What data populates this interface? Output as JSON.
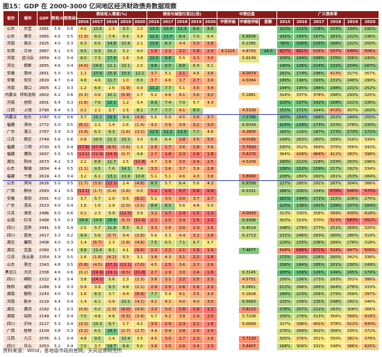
{
  "title": "图15：GDP 在 2000-3000 亿间地区经济财政债务数据观察",
  "source": "资料来源：Wind，各地级市政府官网，天风证券研究所",
  "table": {
    "header_top": [
      "省份",
      "城市",
      "GDP",
      "税收/GDP",
      "财政自给率",
      "税收收入增速(%)",
      "税收与城投付息比(倍)",
      "中债估值",
      "广义债务率"
    ],
    "header_sub": [
      "2016",
      "2017",
      "2018",
      "2019",
      "2020",
      "2016",
      "2017",
      "2018",
      "2019",
      "2020",
      "中债评级",
      "中诚信评级",
      "差额",
      "2015",
      "2016",
      "2017",
      "2018",
      "2019",
      "2020"
    ],
    "rows": [
      [
        "山东",
        "东营",
        "2981",
        "5.6",
        "0.8",
        "4.0",
        "10.6",
        "2.3",
        "9.3",
        "2.0",
        "13.3",
        "13.4",
        "11.3",
        "9.4",
        "8.8",
        "",
        "",
        "",
        "112%",
        "111%",
        "128%",
        "153%",
        "184%",
        "192%"
      ],
      [
        "山东",
        "泰安",
        "2965",
        "4.5",
        "0.5",
        "(1.9)",
        "8.0",
        "7.4",
        "6.6",
        "3.4",
        "12.5",
        "11.0",
        "8.4",
        "7.0",
        "6.4",
        "",
        "6.8506",
        "",
        "141%",
        "150%",
        "167%",
        "181%",
        "212%",
        "236%"
      ],
      [
        "河南",
        "商丘",
        "2925",
        "4.0",
        "0.3",
        "6.3",
        "6.6",
        "14.8",
        "10.6",
        "2.1",
        "13.6",
        "8.3",
        "4.4",
        "3.0",
        "2.6",
        "",
        "6.2385",
        "",
        "90%",
        "100%",
        "115%",
        "168%",
        "222%",
        "250%"
      ],
      [
        "甘肃",
        "兰州",
        "2887",
        "6.1",
        "0.5",
        "9.5",
        "9.9",
        "10.2",
        "5.2",
        "4.0",
        "1.9",
        "2.2",
        "2.1",
        "1.8",
        "2.0",
        "4.1114",
        "4.8750",
        "24.0",
        "627%",
        "661%",
        "526%",
        "537%",
        "549%",
        "506%"
      ],
      [
        "河南",
        "驻马店",
        "2859",
        "4.0",
        "0.4",
        "8.0",
        "7.3",
        "17.4",
        "1.6",
        "3.8",
        "12.0",
        "9.8",
        "5.5",
        "3.3",
        "3.0",
        "",
        "5.9149",
        "",
        "156%",
        "144%",
        "149%",
        "176%",
        "206%",
        "240%"
      ],
      [
        "河北",
        "邯郸",
        "2855",
        "4.6",
        "0.4",
        "(4.0)",
        "14.5",
        "12.1",
        "10.1",
        "2.0",
        "9.6",
        "9.0",
        "8.8",
        "6.9",
        "6.1",
        "",
        "",
        "",
        "140%",
        "126%",
        "114%",
        "131%",
        "154%",
        "167%"
      ],
      [
        "安徽",
        "滁州",
        "2851",
        "5.0",
        "0.5",
        "1.2",
        "17.9",
        "15.9",
        "15.5",
        "12.1",
        "3.7",
        "5.1",
        "2.1",
        "4.5",
        "3.6",
        "",
        "4.0074",
        "",
        "181%",
        "174%",
        "196%",
        "423%",
        "317%",
        "357%"
      ],
      [
        "安徽",
        "安庆",
        "2829",
        "4.7",
        "0.4",
        "4.8",
        "4.6",
        "11.7",
        "1.0",
        "8.0",
        "3.7",
        "4.6",
        "3.7",
        "2.7",
        "3.6",
        "",
        "4.5084",
        "",
        "189%",
        "196%",
        "193%",
        "231%",
        "246%",
        "290%"
      ],
      [
        "河南",
        "周口",
        "2805",
        "4.2",
        "0.3",
        "1.2",
        "6.4",
        "2.6",
        "(1.9)",
        "0.9",
        "11.2",
        "7.7",
        "5.1",
        "3.6",
        "3.4",
        "",
        "",
        "",
        "194%",
        "195%",
        "186%",
        "198%",
        "221%",
        "252%"
      ],
      [
        "内蒙古",
        "呼和浩特",
        "2802",
        "6.2",
        "0.6",
        "(0.3)",
        "0.6",
        "10.2",
        "(5.9)",
        "2.7",
        "5.2",
        "4.6",
        "4.1",
        "3.6",
        "3.2",
        "",
        "5.1881",
        "",
        "314%",
        "337%",
        "378%",
        "298%",
        "293%",
        "325%"
      ],
      [
        "河南",
        "信阳",
        "2801",
        "6.4",
        "0.3",
        "(1.8)",
        "7.6",
        "22.1",
        "1.2",
        "3.4",
        "8.4",
        "7.4",
        "7.0",
        "5.7",
        "4.3",
        "",
        "",
        "",
        "120%",
        "137%",
        "142%",
        "158%",
        "221%",
        "235%"
      ],
      [
        "江西",
        "上饶",
        "2790",
        "6.4",
        "0.3",
        "0.2",
        "2.1",
        "3.7",
        "1.5",
        "8.1",
        "7.7",
        "7.7",
        "4.1",
        "8.0",
        "",
        "",
        "4.5339",
        "",
        "153%",
        "171%",
        "244%",
        "472%",
        "307%",
        "263%"
      ],
      [
        "内蒙古",
        "包头",
        "2787",
        "6.0",
        "0.6",
        "3.7",
        "15.1",
        "19.5",
        "9.4",
        "(4.8)",
        "5.5",
        "5.0",
        "4.5",
        "3.6",
        "3.7",
        "",
        "7.5766",
        "",
        "160%",
        "164%",
        "189%",
        "252%",
        "249%",
        "255%"
      ],
      [
        "福建",
        "漳州",
        "2772",
        "5.0",
        "0.5",
        "(6.1)",
        "2.2",
        "1.4",
        "2.6",
        "(1.4)",
        "4.2",
        "3.9",
        "3.9",
        "3.2",
        "3.0",
        "",
        "6.5034",
        "",
        "114%",
        "129%",
        "173%",
        "233%",
        "278%",
        "230%"
      ],
      [
        "广东",
        "湛江",
        "2767",
        "3.9",
        "0.3",
        "(3.4)",
        "6.3",
        "9.3",
        "(1.6)",
        "(3.1)",
        "12.5",
        "12.2",
        "12.5",
        "7.7",
        "4.8",
        "",
        "4.2805",
        "",
        "185%",
        "216%",
        "187%",
        "173%",
        "173%",
        "172%"
      ],
      [
        "江苏",
        "宿迁",
        "2749",
        "5.6",
        "0.6",
        "0.8",
        "10.0",
        "11.1",
        "10.1",
        "3.0",
        "6.8",
        "6.4",
        "2.8",
        "3.5",
        "3.0",
        "",
        "4.0165",
        "",
        "249%",
        "263%",
        "260%",
        "289%",
        "316%",
        "339%"
      ],
      [
        "福建",
        "三明",
        "2720",
        "4.5",
        "0.4",
        "(17.8)",
        "(17.4)",
        "(8.5)",
        "(3.6)",
        "1.3",
        "2.9",
        "2.7",
        "3.6",
        "2.8",
        "3.6",
        "",
        "3.7920",
        "",
        "290%",
        "352%",
        "369%",
        "375%",
        "356%",
        "342%"
      ],
      [
        "福建",
        "莆田",
        "2697",
        "5.5",
        "0.5",
        "(13.1)",
        "(12.9)",
        "(14.3)",
        "(0.7)",
        "4.8",
        "2.7",
        "1.8",
        "2.3",
        "1.6",
        "1.8",
        "",
        "3.8276",
        "",
        "364%",
        "428%",
        "464%",
        "412%",
        "383%",
        "398%"
      ],
      [
        "湖北",
        "荆州",
        "2673",
        "4.2",
        "0.3",
        "2.1",
        "8.8",
        "11.7",
        "2.5",
        "(11.8)",
        "4.7",
        "3.9",
        "3.0",
        "2.4",
        "2.5",
        "",
        "4.5209",
        "",
        "190%",
        "212%",
        "228%",
        "233%",
        "263%",
        "296%"
      ],
      [
        "山东",
        "聊城",
        "2654",
        "4.4",
        "0.5",
        "(1.1)",
        "9.5",
        "7.6",
        "14.1",
        "7.4",
        "3.3",
        "3.6",
        "3.7",
        "3.9",
        "2.8",
        "",
        "",
        "",
        "136%",
        "152%",
        "159%",
        "217%",
        "282%",
        "334%"
      ],
      [
        "福建",
        "宁德",
        "2619",
        "4.0",
        "0.4",
        "3.2",
        "6.1",
        "13.1",
        "10.9",
        "10.6",
        "5.1",
        "5.1",
        "4.6",
        "4.3",
        "3.8",
        "",
        "3.8990",
        "",
        "208%",
        "280%",
        "260%",
        "281%",
        "253%",
        "284%"
      ],
      [
        "山东",
        "滨州",
        "2616",
        "5.0",
        "0.5",
        "(1.7)",
        "(3.5)",
        "(12.2)",
        "2.4",
        "(4.8)",
        "8.3",
        "5.7",
        "6.4",
        "5.6",
        "4.3",
        "",
        "6.8358",
        "",
        "227%",
        "285%",
        "291%",
        "287%",
        "304%",
        "366%"
      ],
      [
        "广西",
        "柳州",
        "2583",
        "4.1",
        "0.5",
        "(13.1)",
        "(1.7)",
        "(0.4)",
        "(1.6)",
        "0.0",
        "1.1",
        "1.0",
        "0.7",
        "0.8",
        "0.9",
        "",
        "6.5331",
        "",
        "186%",
        "200%",
        "234%",
        "678%",
        "546%",
        "570%"
      ],
      [
        "安徽",
        "阜阳",
        "2561",
        "4.0",
        "0.3",
        "3.7",
        "5.7",
        "1.0",
        "0.5",
        "(8.2)",
        "5.1",
        "3.5",
        "3.0",
        "3.7",
        "2.7",
        "",
        "",
        "",
        "101%",
        "144%",
        "171%",
        "215%",
        "226%",
        "275%"
      ],
      [
        "广东",
        "茂名",
        "2523",
        "4.0",
        "0.4",
        "1.6",
        "1.6",
        "2.9",
        "(2.0)",
        "(2.5)",
        "8.4",
        "8.5",
        "5.6",
        "4.8",
        "5.0",
        "",
        "",
        "",
        "123%",
        "138%",
        "141%",
        "139%",
        "157%",
        "164%"
      ],
      [
        "江苏",
        "淮安",
        "2486",
        "6.0",
        "0.6",
        "0.1",
        "2.3",
        "5.9",
        "(12.5)",
        "3.9",
        "3.2",
        "1.7",
        "1.4",
        "1.5",
        "1.3",
        "",
        "4.0093",
        "",
        "313%",
        "330%",
        "358%",
        "399%",
        "430%",
        "418%"
      ],
      [
        "云南",
        "红河",
        "2468",
        "5.5",
        "0.3",
        "16.9",
        "14.8",
        "25.6",
        "(5.3)",
        "(11.6)",
        "2.1",
        "2.5",
        "2.4",
        "1.5",
        "1.0",
        "",
        "6.9306",
        "",
        "303%",
        "323%",
        "370%",
        "513%",
        "583%",
        "552%"
      ],
      [
        "四川",
        "宜宾",
        "2441",
        "3.6",
        "0.4",
        "2.5",
        "5.7",
        "11.8",
        "8.3",
        "6.2",
        "3.3",
        "3.8",
        "3.0",
        "2.9",
        "2.6",
        "",
        "6.4524",
        "",
        "248%",
        "279%",
        "277%",
        "251%",
        "269%",
        "325%"
      ],
      [
        "四川",
        "南充",
        "2417",
        "3.3",
        "0.2",
        "9.4",
        "5.6",
        "(3.7)",
        "0.4",
        "(2.6)",
        "5.6",
        "5.3",
        "4.4",
        "3.1",
        "2.8",
        "",
        "6.2713",
        "",
        "231%",
        "246%",
        "263%",
        "260%",
        "280%",
        "319%"
      ],
      [
        "湖北",
        "襄阳",
        "2408",
        "4.0",
        "0.3",
        "1.4",
        "(5.7)",
        "2.3",
        "(1.8)",
        "(4.8)",
        "7.5",
        "6.5",
        "7.1",
        "6.7",
        "5.7",
        "",
        "",
        "",
        "229%",
        "233%",
        "236%",
        "289%",
        "278%",
        "318%"
      ],
      [
        "湖北",
        "宜昌",
        "2360",
        "3.7",
        "0.4",
        "9.8",
        "11.4",
        "8.1",
        "4.1",
        "(9.6)",
        "2.3",
        "2.2",
        "2.1",
        "1.6",
        "1.9",
        "",
        "7.4877",
        "",
        "508%",
        "698%",
        "671%",
        "534%",
        "497%",
        "509%"
      ],
      [
        "江苏",
        "连云港",
        "2354",
        "5.9",
        "0.5",
        "1.6",
        "(1.8)",
        "(4.2)",
        "0.3",
        "3.1",
        "3.8",
        "4.3",
        "3.1",
        "2.2",
        "1.8",
        "",
        "",
        "",
        "172%",
        "220%",
        "226%",
        "260%",
        "342%",
        "338%"
      ],
      [
        "山东",
        "枣庄",
        "2343",
        "4.8",
        "0.5",
        "(5.8)",
        "(4.5)",
        "(17.1)",
        "(12.1)",
        "(7.0)",
        "4.5",
        "2.5",
        "3.6",
        "2.7",
        "2.6",
        "",
        "",
        "",
        "156%",
        "164%",
        "185%",
        "201%",
        "230%",
        "249%"
      ],
      [
        "黑龙江",
        "大庆",
        "2338",
        "4.6",
        "0.6",
        "(0.2)",
        "(19.9)",
        "(19.1)",
        "(9.5)",
        "(21.8)",
        "2.7",
        "2.9",
        "3.0",
        "2.4",
        "1.6",
        "",
        "6.3145",
        "",
        "105%",
        "109%",
        "126%",
        "149%",
        "165%",
        "179%"
      ],
      [
        "四川",
        "绵阳",
        "2322",
        "4.3",
        "0.4",
        "3.8",
        "(14.1)",
        "5.6",
        "2.3",
        "(2.3)",
        "3.6",
        "3.1",
        "2.2",
        "2.5",
        "2.5",
        "",
        "4.5751",
        "",
        "256%",
        "236%",
        "273%",
        "293%",
        "352%",
        "386%"
      ],
      [
        "陕西",
        "咸阳",
        "2289",
        "3.9",
        "0.3",
        "0.4",
        "3.9",
        "9.3",
        "4.8",
        "(2.1)",
        "2.9",
        "2.5",
        "2.6",
        "2.4",
        "2.3",
        "",
        "6.0861",
        "",
        "213%",
        "268%",
        "245%",
        "264%",
        "278%",
        "333%"
      ],
      [
        "湖南",
        "衡阳",
        "2243",
        "4.0",
        "0.3",
        "1.6",
        "8.3",
        "3.7",
        "0.4",
        "(8.4)",
        "7.7",
        "5.4",
        "4.1",
        "3.5",
        "3.4",
        "",
        "5.1828",
        "",
        "199%",
        "223%",
        "256%",
        "279%",
        "309%",
        "397%"
      ],
      [
        "河南",
        "新乡",
        "2219",
        "4.4",
        "0.4",
        "1.4",
        "6.1",
        "0.9",
        "10.1",
        "(4.1)",
        "4.2",
        "4.2",
        "4.0",
        "4.0",
        "3.0",
        "",
        "6.5663",
        "",
        "235%",
        "258%",
        "235%",
        "248%",
        "281%",
        "346%"
      ],
      [
        "湖北",
        "黄冈",
        "2182",
        "5.1",
        "0.3",
        "(0.8)",
        "6.0",
        "(2.0)",
        "(9.0)",
        "(4.6)",
        "3.0",
        "3.0",
        "1.8",
        "1.6",
        "1.2",
        "",
        "3.8213",
        "",
        "176%",
        "207%",
        "212%",
        "283%",
        "308%",
        "366%"
      ],
      [
        "湖南",
        "岳阳",
        "2149",
        "4.7",
        "0.4",
        "7.0",
        "4.8",
        "4.6",
        "(5.5)",
        "(3.4)",
        "5.7",
        "4.2",
        "3.8",
        "2.9",
        "2.0",
        "",
        "5.7208",
        "",
        "256%",
        "278%",
        "313%",
        "356%",
        "399%",
        "419%"
      ],
      [
        "四川",
        "泸州",
        "2127",
        "5.3",
        "0.4",
        "(3.3)",
        "10.3",
        "8.7",
        "1.7",
        "4.2",
        "3.0",
        "2.5",
        "2.3",
        "2.1",
        "1.8",
        "",
        "5.0009",
        "",
        "327%",
        "398%",
        "401%",
        "378%",
        "412%",
        "430%"
      ],
      [
        "广西",
        "桂林",
        "2104",
        "3.8",
        "0.3",
        "(3.2)",
        "6.5",
        "18.3",
        "(2.7)",
        "(2.7)",
        "4.4",
        "3.4",
        "2.8",
        "2.6",
        "2.0",
        "",
        "",
        "",
        "276%",
        "269%",
        "302%",
        "306%",
        "335%",
        "372%"
      ],
      [
        "江西",
        "九江",
        "2076",
        "6.1",
        "0.4",
        "4.8",
        "9.5",
        "2.4",
        "10.4",
        "3.5",
        "4.5",
        "3.0",
        "2.7",
        "2.3",
        "2.8",
        "",
        "3.7130",
        "",
        "305%",
        "376%",
        "351%",
        "350%",
        "381%",
        "378%"
      ],
      [
        "四川",
        "乐山",
        "2053",
        "5.2",
        "0.4",
        "7.0",
        "3.7",
        "14.7",
        "8.9",
        "5.0",
        "3.8",
        "3.0",
        "2.6",
        "2.4",
        "2.3",
        "",
        "3.8407",
        "",
        "268%",
        "309%",
        "331%",
        "348%",
        "386%",
        "425%"
      ]
    ]
  }
}
